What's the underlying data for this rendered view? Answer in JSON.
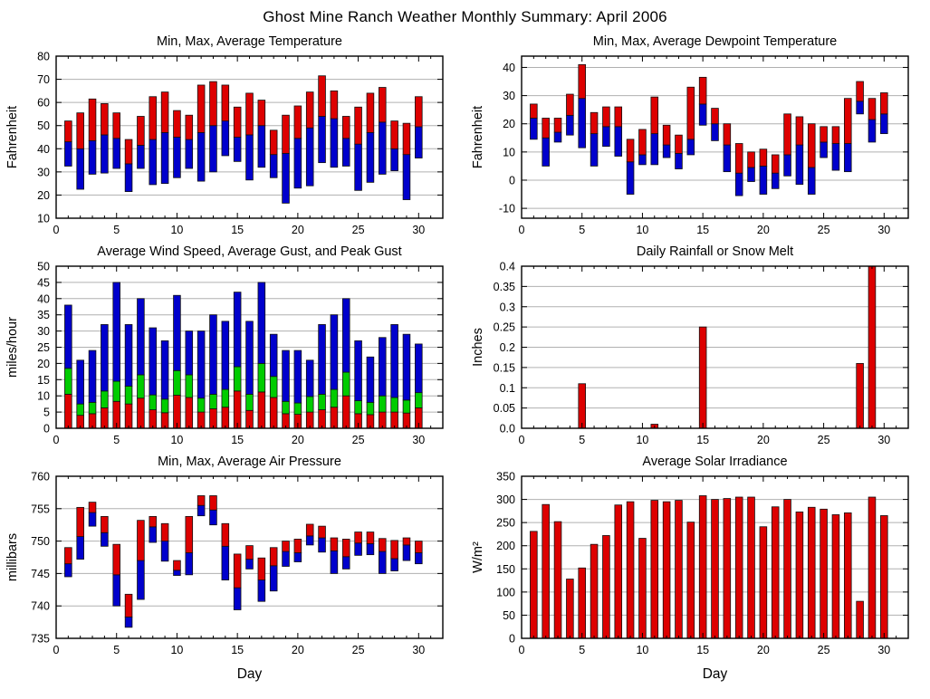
{
  "title": "Ghost Mine Ranch Weather Monthly Summary: April 2006",
  "colors": {
    "max_segment": "#dd0000",
    "min_segment": "#0000cc",
    "mid_segment": "#00cc00",
    "single_bar": "#dd0000",
    "bar_outline": "#111111",
    "grid": "#b0b0b0",
    "axis": "#000000",
    "background": "#ffffff"
  },
  "days": [
    1,
    2,
    3,
    4,
    5,
    6,
    7,
    8,
    9,
    10,
    11,
    12,
    13,
    14,
    15,
    16,
    17,
    18,
    19,
    20,
    21,
    22,
    23,
    24,
    25,
    26,
    27,
    28,
    29,
    30
  ],
  "x_axis": {
    "lim": [
      0,
      32
    ],
    "ticks": [
      0,
      5,
      10,
      15,
      20,
      25,
      30
    ],
    "tick_labels": [
      "0",
      "5",
      "10",
      "15",
      "20",
      "25",
      "30"
    ],
    "minor_step": 1
  },
  "chart_data": [
    {
      "id": "temperature",
      "type": "bar",
      "subtype": "minmax",
      "title": "Min, Max, Average Temperature",
      "ylabel": "Fahrenheit",
      "xlabel": "",
      "ylim": [
        10,
        80
      ],
      "yticks": [
        10,
        20,
        30,
        40,
        50,
        60,
        70,
        80
      ],
      "ytick_labels": [
        "10",
        "20",
        "30",
        "40",
        "50",
        "60",
        "70",
        "80"
      ],
      "min": [
        32.5,
        22.5,
        29,
        29.5,
        31.5,
        21.5,
        31.5,
        24.5,
        25,
        27.5,
        31.5,
        26,
        30,
        37,
        34.5,
        26.5,
        32,
        27.5,
        16.5,
        23,
        24,
        34,
        32,
        32.5,
        22,
        25.5,
        29,
        30.5,
        18,
        36
      ],
      "avg": [
        43,
        40,
        43.5,
        46,
        44.5,
        33.5,
        41.5,
        44,
        47,
        45,
        44,
        47,
        50,
        52,
        45,
        46,
        50,
        37.5,
        38,
        44.5,
        49,
        54,
        53,
        44.5,
        42,
        47,
        51.5,
        40,
        37.5,
        49.5
      ],
      "max": [
        52,
        55.5,
        61.5,
        59.5,
        55.5,
        44,
        54,
        62.5,
        64.5,
        56.5,
        54.5,
        67.5,
        69,
        67.5,
        58,
        64,
        61,
        48,
        54.5,
        58.5,
        64.5,
        71.5,
        65,
        54,
        58,
        64,
        66.5,
        52,
        51,
        62.5
      ]
    },
    {
      "id": "dewpoint",
      "type": "bar",
      "subtype": "minmax",
      "title": "Min, Max, Average Dewpoint Temperature",
      "ylabel": "Fahrenheit",
      "xlabel": "",
      "ylim": [
        -13.5,
        44
      ],
      "yticks": [
        -10,
        0,
        10,
        20,
        30,
        40
      ],
      "ytick_labels": [
        "-10",
        "0",
        "10",
        "20",
        "30",
        "40"
      ],
      "min": [
        14.5,
        5,
        13.5,
        16,
        11.5,
        5,
        12,
        8.5,
        -5,
        5.5,
        5.5,
        8,
        4,
        9,
        19.5,
        14,
        3,
        -5.5,
        -0.5,
        -5,
        -3,
        1.5,
        -1.5,
        -5,
        8,
        3.5,
        3,
        23.5,
        13.5,
        16.5
      ],
      "avg": [
        22,
        15,
        17,
        23,
        29,
        16.5,
        19,
        19,
        6.5,
        9,
        16.5,
        12.5,
        9.5,
        14.5,
        27,
        20,
        12.5,
        2.5,
        4.5,
        5,
        2.5,
        9,
        12.5,
        4.5,
        13.5,
        13,
        13,
        28,
        21.5,
        23.5
      ],
      "max": [
        27,
        22,
        22,
        30.5,
        41,
        24,
        26,
        26,
        14.5,
        18,
        29.5,
        19.5,
        16,
        33,
        36.5,
        25.5,
        20,
        13,
        10,
        11,
        9,
        23.5,
        22.5,
        20,
        19,
        19,
        29,
        35,
        29,
        31
      ]
    },
    {
      "id": "wind",
      "type": "bar",
      "subtype": "stack3",
      "title": "Average Wind Speed, Average Gust, and Peak Gust",
      "ylabel": "miles/hour",
      "xlabel": "",
      "ylim": [
        0,
        50
      ],
      "yticks": [
        0,
        5,
        10,
        15,
        20,
        25,
        30,
        35,
        40,
        45,
        50
      ],
      "ytick_labels": [
        "0",
        "5",
        "10",
        "15",
        "20",
        "25",
        "30",
        "35",
        "40",
        "45",
        "50"
      ],
      "avg_wind": [
        10.5,
        4,
        4.5,
        6.3,
        8.3,
        7.5,
        9.3,
        5.7,
        4.8,
        10.2,
        9.5,
        5,
        6,
        6.5,
        11.5,
        5.5,
        11.2,
        9.5,
        4.5,
        4.3,
        5,
        5.7,
        6.5,
        10,
        4.5,
        4.2,
        5,
        5,
        4.7,
        6.3
      ],
      "avg_gust": [
        18.5,
        7.5,
        8,
        11.5,
        14.5,
        13,
        16.5,
        10.3,
        9,
        17.8,
        16.5,
        9.3,
        10.5,
        12,
        19,
        10.5,
        20,
        16,
        8.3,
        7.8,
        9.8,
        10.5,
        12,
        17.3,
        8.5,
        8,
        10,
        9.5,
        8.7,
        11
      ],
      "peak_gust": [
        38,
        21,
        24,
        32,
        45,
        32,
        40,
        31,
        27,
        41,
        30,
        30,
        35,
        33,
        42,
        33,
        45,
        29,
        24,
        24,
        21,
        32,
        35,
        40,
        27,
        22,
        28,
        32,
        29,
        26
      ]
    },
    {
      "id": "rainfall",
      "type": "bar",
      "subtype": "single",
      "title": "Daily Rainfall or Snow Melt",
      "ylabel": "Inches",
      "xlabel": "",
      "ylim": [
        0,
        0.4
      ],
      "yticks": [
        0,
        0.05,
        0.1,
        0.15,
        0.2,
        0.25,
        0.3,
        0.35,
        0.4
      ],
      "ytick_labels": [
        "0.0",
        "0.05",
        "0.1",
        "0.15",
        "0.2",
        "0.25",
        "0.3",
        "0.35",
        "0.4"
      ],
      "values": [
        0,
        0,
        0,
        0,
        0.11,
        0,
        0,
        0,
        0,
        0,
        0.01,
        0,
        0,
        0,
        0.25,
        0,
        0,
        0,
        0,
        0,
        0,
        0,
        0,
        0,
        0,
        0,
        0,
        0.16,
        0.4,
        0
      ]
    },
    {
      "id": "pressure",
      "type": "bar",
      "subtype": "minmax",
      "title": "Min, Max, Average Air Pressure",
      "ylabel": "millibars",
      "xlabel": "Day",
      "ylim": [
        735,
        760
      ],
      "yticks": [
        735,
        740,
        745,
        750,
        755,
        760
      ],
      "ytick_labels": [
        "735",
        "740",
        "745",
        "750",
        "755",
        "760"
      ],
      "min": [
        744.5,
        747.2,
        752.3,
        749.2,
        740,
        736.7,
        741,
        749.8,
        746.9,
        744.7,
        744.8,
        753.9,
        752.5,
        744,
        739.4,
        745.7,
        740.7,
        742.3,
        746.1,
        746.8,
        749.4,
        748.3,
        745,
        745.7,
        747.8,
        747.9,
        745,
        745.4,
        747,
        746.5
      ],
      "avg": [
        746.5,
        750.7,
        754.4,
        751.3,
        744.8,
        738.3,
        747,
        752.2,
        750,
        745.5,
        748.2,
        755.5,
        754.8,
        749.2,
        742.8,
        747.2,
        744,
        746.2,
        748.4,
        748.2,
        750.8,
        750.5,
        748.5,
        747.6,
        749.7,
        749.6,
        748.4,
        747.3,
        749.4,
        748.2
      ],
      "max": [
        749,
        755.2,
        756,
        753.8,
        749.5,
        741.8,
        753.2,
        753.8,
        752.7,
        747,
        753.8,
        757,
        757,
        752.7,
        748,
        749.3,
        747.4,
        749,
        750,
        750.3,
        752.6,
        752.3,
        750.5,
        750.3,
        751.4,
        751.4,
        750.4,
        750.1,
        750.5,
        750
      ]
    },
    {
      "id": "solar",
      "type": "bar",
      "subtype": "single",
      "title": "Average Solar Irradiance",
      "ylabel": "W/m²",
      "xlabel": "Day",
      "ylim": [
        0,
        350
      ],
      "yticks": [
        0,
        50,
        100,
        150,
        200,
        250,
        300,
        350
      ],
      "ytick_labels": [
        "0",
        "50",
        "100",
        "150",
        "200",
        "250",
        "300",
        "350"
      ],
      "values": [
        231,
        289,
        252,
        128,
        152,
        203,
        222,
        288,
        295,
        216,
        298,
        295,
        298,
        251,
        308,
        300,
        302,
        305,
        305,
        241,
        284,
        300,
        273,
        283,
        279,
        267,
        271,
        80,
        305,
        265
      ]
    }
  ]
}
